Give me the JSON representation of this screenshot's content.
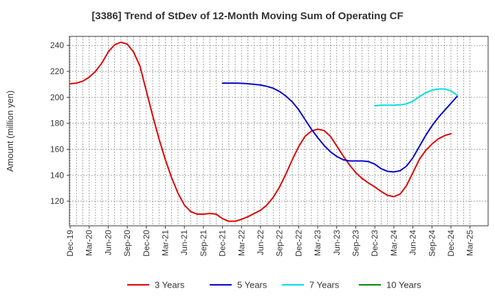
{
  "chart_data": {
    "type": "line",
    "title": "[3386]  Trend of StDev of 12-Month Moving Sum of Operating CF",
    "xlabel": "",
    "ylabel": "Amount (million yen)",
    "x_tick_labels": [
      "Dec-19",
      "Mar-20",
      "Jun-20",
      "Sep-20",
      "Dec-20",
      "Mar-21",
      "Jun-21",
      "Sep-21",
      "Dec-21",
      "Mar-22",
      "Jun-22",
      "Sep-22",
      "Dec-22",
      "Mar-23",
      "Jun-23",
      "Sep-23",
      "Dec-23",
      "Mar-24",
      "Jun-24",
      "Sep-24",
      "Dec-24",
      "Mar-25"
    ],
    "y_ticks": [
      120,
      140,
      160,
      180,
      200,
      220,
      240
    ],
    "ylim": [
      101,
      247
    ],
    "grid": true,
    "legend_position": "bottom",
    "series": [
      {
        "name": "3 Years",
        "color": "#dd0000",
        "start_index": 0,
        "values": [
          210.5,
          211.0,
          212.5,
          215.5,
          220.0,
          226.5,
          235.0,
          240.5,
          242.5,
          241.0,
          235.0,
          224.0,
          205.0,
          186.0,
          168.0,
          152.0,
          138.0,
          126.0,
          117.0,
          112.0,
          110.0,
          110.0,
          110.5,
          110.0,
          106.5,
          104.5,
          104.5,
          106.0,
          108.0,
          110.5,
          113.0,
          117.0,
          123.0,
          131.0,
          141.0,
          152.0,
          162.0,
          170.0,
          174.0,
          175.5,
          174.5,
          170.0,
          162.5,
          155.0,
          148.0,
          142.0,
          137.5,
          134.0,
          131.0,
          127.5,
          124.5,
          123.5,
          125.5,
          132.0,
          142.0,
          152.0,
          159.0,
          164.0,
          168.0,
          170.5,
          172.0
        ]
      },
      {
        "name": "5 Years",
        "color": "#0000cc",
        "start_index": 24,
        "values": [
          211.0,
          211.0,
          211.0,
          210.8,
          210.5,
          210.0,
          209.5,
          208.5,
          207.0,
          204.5,
          201.0,
          196.5,
          190.5,
          183.0,
          175.5,
          169.0,
          163.0,
          158.0,
          154.5,
          152.0,
          151.0,
          151.0,
          151.0,
          150.5,
          148.5,
          145.0,
          143.0,
          142.5,
          143.5,
          147.0,
          153.5,
          162.0,
          170.5,
          178.0,
          184.5,
          190.0,
          195.5,
          201.0
        ]
      },
      {
        "name": "7 Years",
        "color": "#00dddd",
        "start_index": 48,
        "values": [
          193.5,
          194.0,
          194.0,
          194.0,
          194.2,
          195.0,
          197.0,
          200.5,
          203.5,
          205.5,
          206.5,
          206.5,
          205.0,
          201.5
        ]
      },
      {
        "name": "10 Years",
        "color": "#008800",
        "start_index": 0,
        "values": []
      }
    ]
  }
}
